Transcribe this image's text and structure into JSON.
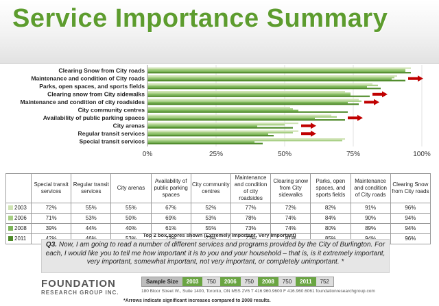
{
  "title": "Service Importance Summary",
  "chart_data": {
    "type": "bar",
    "orientation": "horizontal",
    "categories": [
      "Clearing Snow from City roads",
      "Maintenance and condition of City roads",
      "Parks, open spaces, and sports fields",
      "Clearing snow from City sidewalks",
      "Maintenance and condition of city roadsides",
      "City community centres",
      "Availability of public parking spaces",
      "City arenas",
      "Regular transit services",
      "Special transit services"
    ],
    "series": [
      {
        "name": "2003",
        "color": "#cfe3b4",
        "values": [
          96,
          91,
          82,
          72,
          77,
          52,
          67,
          55,
          55,
          72
        ]
      },
      {
        "name": "2006",
        "color": "#a7cf84",
        "values": [
          94,
          90,
          84,
          74,
          78,
          53,
          69,
          50,
          53,
          71
        ]
      },
      {
        "name": "2008",
        "color": "#7db659",
        "values": [
          94,
          89,
          80,
          74,
          73,
          55,
          61,
          40,
          44,
          39
        ]
      },
      {
        "name": "2011",
        "color": "#4f8b2a",
        "values": [
          96,
          94,
          85,
          81,
          77,
          73,
          72,
          53,
          46,
          42
        ]
      }
    ],
    "xlim": [
      0,
      100
    ],
    "xtick_labels": [
      "0%",
      "25%",
      "50%",
      "75%",
      "100%"
    ],
    "arrow_flags": [
      false,
      true,
      false,
      true,
      true,
      false,
      true,
      true,
      true,
      false
    ],
    "arrow_color": "#c00000"
  },
  "table": {
    "headers": [
      "Special transit services",
      "Regular transit services",
      "City arenas",
      "Availability of public parking spaces",
      "City community centres",
      "Maintenance and condition of city roadsides",
      "Clearing snow from City sidewalks",
      "Parks, open spaces, and sports fields",
      "Maintenance and condition of City roads",
      "Clearing Snow from City roads"
    ],
    "rows": [
      {
        "year": "2003",
        "color": "#cfe3b4",
        "cells": [
          "72%",
          "55%",
          "55%",
          "67%",
          "52%",
          "77%",
          "72%",
          "82%",
          "91%",
          "96%"
        ]
      },
      {
        "year": "2006",
        "color": "#a7cf84",
        "cells": [
          "71%",
          "53%",
          "50%",
          "69%",
          "53%",
          "78%",
          "74%",
          "84%",
          "90%",
          "94%"
        ]
      },
      {
        "year": "2008",
        "color": "#7db659",
        "cells": [
          "39%",
          "44%",
          "40%",
          "61%",
          "55%",
          "73%",
          "74%",
          "80%",
          "89%",
          "94%"
        ]
      },
      {
        "year": "2011",
        "color": "#4f8b2a",
        "cells": [
          "42%",
          "46%",
          "53%",
          "72%",
          "73%",
          "77%",
          "81%",
          "85%",
          "94%",
          "96%"
        ]
      }
    ]
  },
  "top2_note": "Top 2 box scores shown (Extremely Important, Very Important)",
  "question": {
    "label": "Q3.",
    "text": "Now, I am going to read a number of different services and programs provided by the City of Burlington. For each, I would like you to tell me how important it is to you and your household – that is, is it extremely important, very important, somewhat important, not very important, or completely unimportant. *"
  },
  "logo": {
    "line1": "FOUNDATION",
    "line2": "RESEARCH GROUP INC."
  },
  "sample_size": {
    "label": "Sample Size",
    "pairs": [
      {
        "year": "2003",
        "n": "750"
      },
      {
        "year": "2006",
        "n": "750"
      },
      {
        "year": "2008",
        "n": "750"
      },
      {
        "year": "2011",
        "n": "752"
      }
    ]
  },
  "address": "180 Bloor Street W., Suite 1400, Toronto, ON  M5S 2V6   T 416.960.9600   F 416.960.6061   foundationresearchgroup.com",
  "footnote": "*Arrows indicate significant increases compared to 2008 results."
}
